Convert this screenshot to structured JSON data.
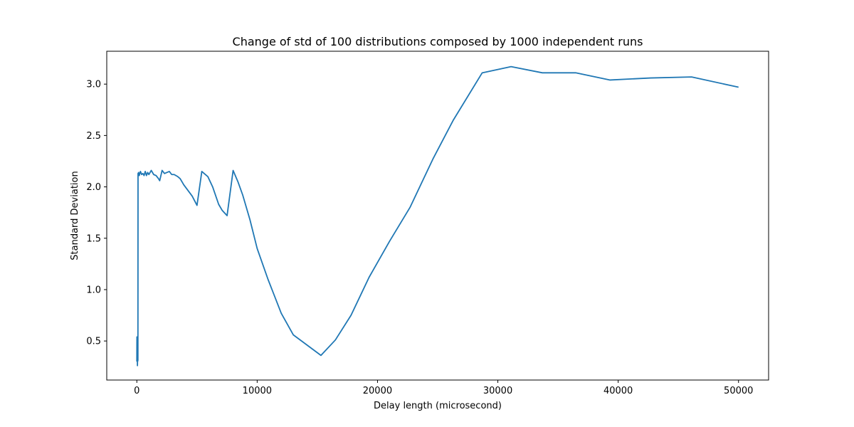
{
  "chart_data": {
    "type": "line",
    "title": "Change of std of 100 distributions composed by 1000 independent runs",
    "xlabel": "Delay length (microsecond)",
    "ylabel": "Standard Deviation",
    "xlim": [
      -2500,
      52500
    ],
    "ylim": [
      0.12,
      3.32
    ],
    "x_ticks": [
      0,
      10000,
      20000,
      30000,
      40000,
      50000
    ],
    "y_ticks": [
      0.5,
      1.0,
      1.5,
      2.0,
      2.5,
      3.0
    ],
    "grid": false,
    "series": [
      {
        "color": "#1f77b4",
        "x": [
          1,
          5,
          10,
          15,
          20,
          30,
          40,
          50,
          60,
          70,
          80,
          90,
          100,
          150,
          200,
          300,
          400,
          500,
          600,
          700,
          800,
          900,
          1000,
          1200,
          1400,
          1600,
          1800,
          1900,
          2100,
          2300,
          2500,
          2700,
          2900,
          3100,
          3400,
          3600,
          3900,
          4600,
          5000,
          5400,
          5900,
          6300,
          6800,
          7100,
          7500,
          8000,
          8400,
          8800,
          9400,
          10000,
          10900,
          12000,
          13000,
          15300,
          16500,
          17800,
          19300,
          21000,
          22700,
          24600,
          26300,
          28700,
          31100,
          33700,
          36500,
          39300,
          42700,
          46100,
          50000
        ],
        "y": [
          0.3,
          0.45,
          0.54,
          0.32,
          0.5,
          0.3,
          0.42,
          0.26,
          0.35,
          0.3,
          0.33,
          0.31,
          2.13,
          2.14,
          2.11,
          2.15,
          2.12,
          2.13,
          2.11,
          2.15,
          2.11,
          2.14,
          2.12,
          2.16,
          2.12,
          2.11,
          2.08,
          2.06,
          2.16,
          2.13,
          2.14,
          2.15,
          2.12,
          2.12,
          2.1,
          2.08,
          2.02,
          1.91,
          1.82,
          2.15,
          2.1,
          2.0,
          1.83,
          1.77,
          1.72,
          2.16,
          2.05,
          1.92,
          1.68,
          1.4,
          1.1,
          0.77,
          0.56,
          0.36,
          0.51,
          0.75,
          1.12,
          1.47,
          1.8,
          2.27,
          2.65,
          3.11,
          3.17,
          3.11,
          3.11,
          3.04,
          3.06,
          3.07,
          2.97
        ]
      }
    ]
  }
}
